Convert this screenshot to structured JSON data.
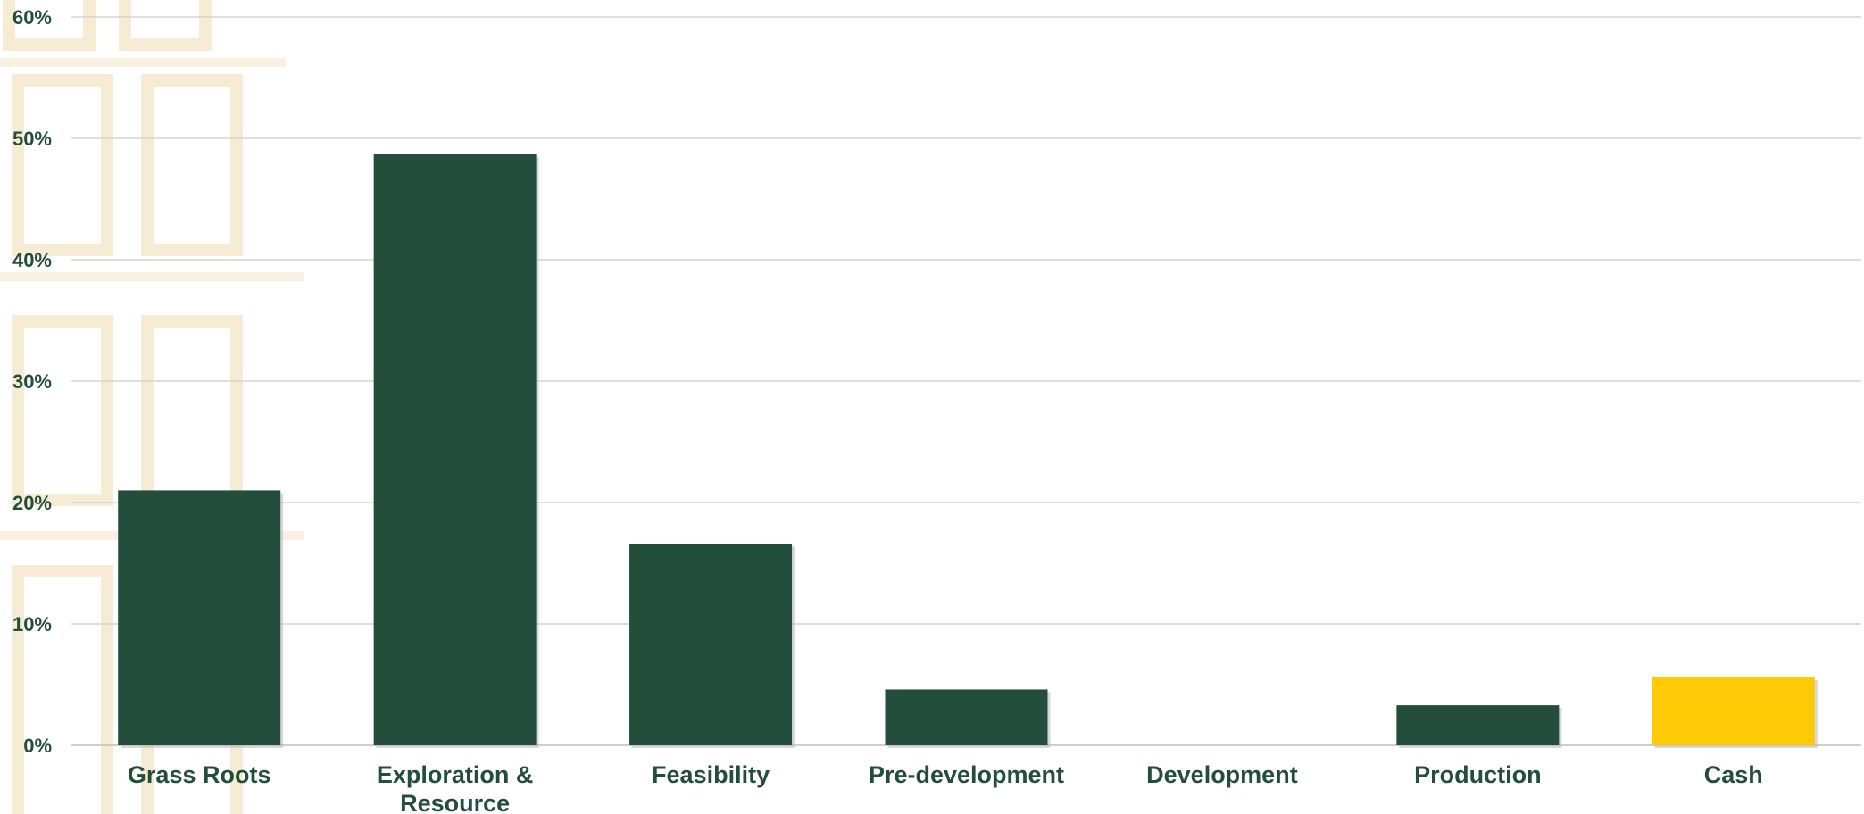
{
  "chart_data": {
    "type": "bar",
    "categories": [
      "Grass Roots",
      "Exploration & Resource",
      "Feasibility",
      "Pre-development",
      "Development",
      "Production",
      "Cash"
    ],
    "category_lines": [
      [
        "Grass Roots"
      ],
      [
        "Exploration &",
        "Resource"
      ],
      [
        "Feasibility"
      ],
      [
        "Pre-development"
      ],
      [
        "Development"
      ],
      [
        "Production"
      ],
      [
        "Cash"
      ]
    ],
    "values": [
      21.0,
      48.7,
      16.6,
      4.6,
      0,
      3.3,
      5.6
    ],
    "bar_colors": [
      "#234e3c",
      "#234e3c",
      "#234e3c",
      "#234e3c",
      "#234e3c",
      "#234e3c",
      "#fecb06"
    ],
    "y_ticks": [
      "0%",
      "10%",
      "20%",
      "30%",
      "40%",
      "50%",
      "60%"
    ],
    "ylim": [
      0,
      60
    ],
    "title": "",
    "xlabel": "",
    "ylabel": "",
    "grid": true,
    "legend": "none"
  },
  "colors": {
    "primary_bar": "#234e3c",
    "cash_bar": "#fecb06",
    "text": "#234e3c",
    "grid": "#d4d4d4"
  }
}
